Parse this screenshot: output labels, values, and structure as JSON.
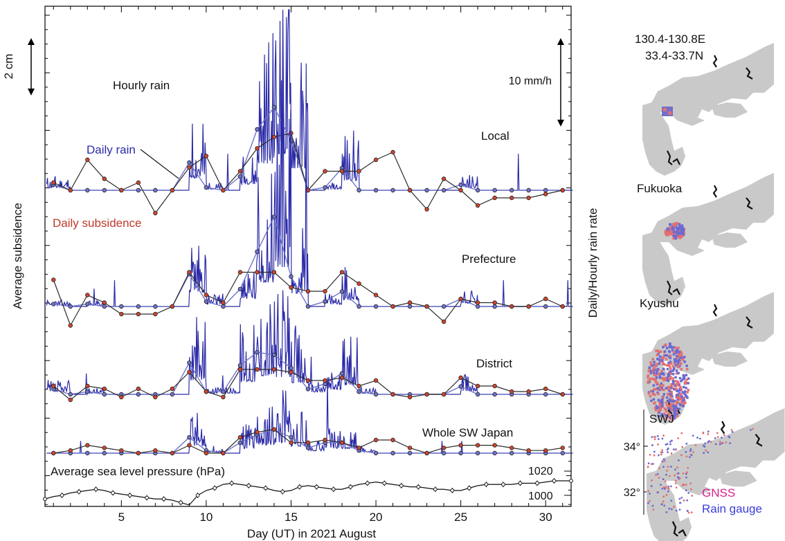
{
  "chart_data": [
    {
      "type": "line",
      "xlabel": "Day (UT) in 2021 August",
      "ylabel_left": "Average subsidence",
      "ylabel_right": "Daily/Hourly rain rate",
      "x_ticks": [
        5,
        10,
        15,
        20,
        25,
        30
      ],
      "xlim": [
        0.5,
        31.5
      ],
      "scale_bars": {
        "subsidence": "2 cm",
        "rain": "10 mm/h"
      },
      "annotations": {
        "hourly_rain": "Hourly rain",
        "daily_rain": "Daily rain",
        "daily_subsidence": "Daily subsidence"
      },
      "colors": {
        "hourly_rain": "#2b2ba8",
        "daily_rain": "#6f74cc",
        "daily_subsidence": "#2a2a2a",
        "subsidence_marker": "#d2452d",
        "rain_marker": "#6f74cc"
      },
      "days": [
        1,
        2,
        3,
        4,
        5,
        6,
        7,
        8,
        9,
        10,
        11,
        12,
        13,
        14,
        15,
        16,
        17,
        18,
        19,
        20,
        21,
        22,
        23,
        24,
        25,
        26,
        27,
        28,
        29,
        30,
        31
      ],
      "panels": [
        {
          "name": "Local",
          "daily_subsidence": [
            0.2,
            0.0,
            0.8,
            0.3,
            0.0,
            0.2,
            -0.6,
            0.0,
            0.6,
            0.9,
            0.0,
            0.5,
            1.1,
            1.4,
            1.5,
            0.0,
            0.5,
            0.5,
            0.5,
            0.8,
            1.0,
            0.0,
            -0.5,
            0.3,
            0.0,
            -0.4,
            -0.2,
            -0.2,
            -0.2,
            -0.1,
            0.0
          ],
          "daily_rain": [
            0.2,
            0.0,
            0.0,
            0.0,
            0.0,
            0.0,
            0.0,
            0.0,
            1.0,
            0.1,
            0.0,
            0.5,
            2.2,
            3.0,
            1.8,
            0.0,
            0.1,
            0.8,
            0.0,
            0.0,
            0.0,
            0.0,
            0.0,
            0.0,
            0.2,
            0.0,
            0.0,
            0.0,
            0.0,
            0.0,
            0.0
          ]
        },
        {
          "name": "Prefecture",
          "daily_subsidence": [
            0.7,
            -0.5,
            0.3,
            0.1,
            -0.2,
            -0.2,
            -0.2,
            0.0,
            0.9,
            0.3,
            0.1,
            0.9,
            0.9,
            0.9,
            0.5,
            0.4,
            0.4,
            0.9,
            0.6,
            0.3,
            0.0,
            0.1,
            0.0,
            -0.4,
            0.2,
            0.1,
            0.1,
            0.0,
            0.0,
            0.2,
            0.0
          ],
          "daily_rain": [
            0.1,
            0.0,
            0.1,
            0.0,
            0.0,
            0.0,
            0.0,
            0.0,
            1.3,
            0.2,
            0.0,
            0.7,
            2.2,
            3.6,
            1.2,
            0.0,
            0.2,
            0.6,
            0.0,
            0.0,
            0.0,
            0.0,
            0.0,
            0.0,
            0.3,
            0.0,
            0.0,
            0.0,
            0.0,
            0.0,
            0.0
          ]
        },
        {
          "name": "District",
          "daily_subsidence": [
            0.3,
            -0.2,
            0.3,
            0.2,
            -0.1,
            0.2,
            -0.1,
            0.2,
            0.8,
            0.1,
            -0.1,
            0.9,
            0.9,
            0.9,
            0.8,
            0.5,
            0.5,
            0.6,
            0.3,
            0.5,
            0.0,
            -0.1,
            0.0,
            0.0,
            0.6,
            0.3,
            0.3,
            0.1,
            0.1,
            0.2,
            0.0
          ],
          "daily_rain": [
            0.2,
            0.0,
            0.1,
            0.0,
            0.0,
            0.0,
            0.0,
            0.0,
            1.2,
            0.1,
            0.1,
            1.1,
            1.6,
            1.5,
            1.0,
            0.2,
            0.4,
            0.8,
            0.1,
            0.0,
            0.0,
            0.0,
            0.0,
            0.0,
            0.3,
            0.0,
            0.0,
            0.0,
            0.0,
            0.0,
            0.0
          ]
        },
        {
          "name": "Whole SW Japan",
          "daily_subsidence": [
            0.0,
            0.1,
            0.3,
            0.2,
            0.1,
            0.0,
            0.1,
            0.0,
            0.3,
            0.0,
            0.0,
            0.6,
            0.8,
            0.9,
            0.4,
            0.4,
            0.5,
            0.4,
            0.2,
            0.5,
            0.5,
            0.2,
            0.0,
            0.2,
            0.3,
            0.3,
            0.3,
            0.2,
            0.1,
            0.1,
            0.2
          ],
          "daily_rain": [
            0.0,
            0.0,
            0.0,
            0.0,
            0.0,
            0.0,
            0.0,
            0.0,
            0.6,
            0.1,
            0.0,
            0.4,
            0.7,
            0.9,
            0.6,
            0.2,
            0.4,
            0.4,
            0.1,
            0.0,
            0.0,
            0.0,
            0.0,
            0.0,
            0.0,
            0.0,
            0.0,
            0.0,
            0.0,
            0.0,
            0.0
          ]
        }
      ],
      "pressure": {
        "label": "Average sea level pressure (hPa)",
        "ticks": [
          1000,
          1020
        ],
        "x": [
          0.5,
          1,
          1.5,
          2,
          2.5,
          3,
          3.5,
          4,
          4.5,
          5,
          5.5,
          6,
          6.5,
          7,
          7.5,
          8,
          8.5,
          9,
          9.5,
          10,
          10.5,
          11,
          11.5,
          12,
          12.5,
          13,
          13.5,
          14,
          14.5,
          15,
          15.5,
          16,
          16.5,
          17,
          17.5,
          18,
          18.5,
          19,
          19.5,
          20,
          20.5,
          21,
          21.5,
          22,
          22.5,
          23,
          23.5,
          24,
          24.5,
          25,
          25.5,
          26,
          26.5,
          27,
          27.5,
          28,
          28.5,
          29,
          29.5,
          30,
          30.5,
          31,
          31.5
        ],
        "hPa": [
          997,
          999,
          1000,
          1002,
          1003,
          1004,
          1005,
          1004,
          1002,
          1001,
          1000,
          999,
          998,
          997,
          997,
          996,
          994,
          992,
          1000,
          1004,
          1006,
          1009,
          1010,
          1009,
          1008,
          1007,
          1006,
          1004,
          1003,
          1004,
          1007,
          1008,
          1007,
          1006,
          1005,
          1005,
          1007,
          1009,
          1010,
          1011,
          1010,
          1009,
          1008,
          1007,
          1007,
          1006,
          1005,
          1005,
          1004,
          1004,
          1006,
          1008,
          1009,
          1009,
          1009,
          1009,
          1010,
          1010,
          1010,
          1011,
          1012,
          1012,
          1012
        ]
      }
    }
  ],
  "maps": [
    {
      "title_line1": "130.4-130.8E",
      "title_line2": "33.4-33.7N"
    },
    {
      "title": "Fukuoka"
    },
    {
      "title": "Kyushu"
    },
    {
      "title": "SWJ",
      "lat_ticks": [
        "34°",
        "32°"
      ],
      "legend": {
        "gnss": "GNSS",
        "rain_gauge": "Rain gauge"
      },
      "colors": {
        "gnss": "#d6208a",
        "rain_gauge": "#3a3adb"
      }
    }
  ]
}
